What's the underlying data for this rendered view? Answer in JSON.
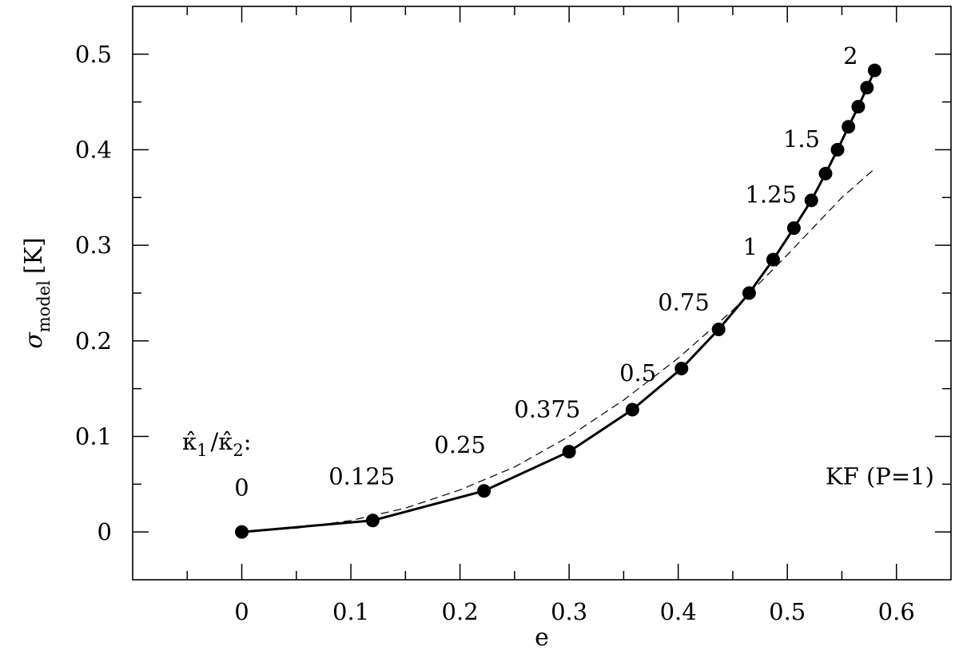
{
  "chart_data": {
    "type": "line",
    "xlabel": "e",
    "ylabel": {
      "symbol": "σ",
      "subscript": "model",
      "unit": "[K]"
    },
    "xlim": [
      -0.1,
      0.65
    ],
    "ylim": [
      -0.05,
      0.55
    ],
    "x_ticks": [
      "0",
      "0.1",
      "0.2",
      "0.3",
      "0.4",
      "0.5",
      "0.6"
    ],
    "y_ticks": [
      "0",
      "0.1",
      "0.2",
      "0.3",
      "0.4",
      "0.5"
    ],
    "series": [
      {
        "style": "solid-with-markers",
        "points": [
          {
            "x": 0.0,
            "y": 0.0
          },
          {
            "x": 0.12,
            "y": 0.012
          },
          {
            "x": 0.222,
            "y": 0.043
          },
          {
            "x": 0.3,
            "y": 0.084
          },
          {
            "x": 0.358,
            "y": 0.128
          },
          {
            "x": 0.403,
            "y": 0.171
          },
          {
            "x": 0.437,
            "y": 0.212
          },
          {
            "x": 0.465,
            "y": 0.25
          },
          {
            "x": 0.487,
            "y": 0.285
          },
          {
            "x": 0.506,
            "y": 0.318
          },
          {
            "x": 0.522,
            "y": 0.347
          },
          {
            "x": 0.535,
            "y": 0.375
          },
          {
            "x": 0.546,
            "y": 0.4
          },
          {
            "x": 0.556,
            "y": 0.424
          },
          {
            "x": 0.565,
            "y": 0.445
          },
          {
            "x": 0.573,
            "y": 0.465
          },
          {
            "x": 0.58,
            "y": 0.483
          }
        ]
      },
      {
        "style": "dashed",
        "points": [
          {
            "x": 0.0,
            "y": 0.0
          },
          {
            "x": 0.05,
            "y": 0.004
          },
          {
            "x": 0.1,
            "y": 0.012
          },
          {
            "x": 0.15,
            "y": 0.025
          },
          {
            "x": 0.2,
            "y": 0.044
          },
          {
            "x": 0.25,
            "y": 0.068
          },
          {
            "x": 0.3,
            "y": 0.1
          },
          {
            "x": 0.35,
            "y": 0.138
          },
          {
            "x": 0.4,
            "y": 0.182
          },
          {
            "x": 0.45,
            "y": 0.232
          },
          {
            "x": 0.5,
            "y": 0.29
          },
          {
            "x": 0.55,
            "y": 0.35
          },
          {
            "x": 0.58,
            "y": 0.38
          }
        ]
      }
    ],
    "legend_header": {
      "parts": [
        {
          "base": "κ̂",
          "sub": "1"
        },
        {
          "sep": "/"
        },
        {
          "base": "κ̂",
          "sub": "2"
        },
        {
          "sep": ":"
        }
      ]
    },
    "point_labels": [
      {
        "text": "0",
        "x": 0.0,
        "y": 0.038
      },
      {
        "text": "0.125",
        "x": 0.11,
        "y": 0.05
      },
      {
        "text": "0.25",
        "x": 0.2,
        "y": 0.083
      },
      {
        "text": "0.375",
        "x": 0.28,
        "y": 0.12
      },
      {
        "text": "0.5",
        "x": 0.363,
        "y": 0.158
      },
      {
        "text": "0.75",
        "x": 0.405,
        "y": 0.232
      },
      {
        "text": "1",
        "x": 0.466,
        "y": 0.29
      },
      {
        "text": "1.25",
        "x": 0.485,
        "y": 0.345
      },
      {
        "text": "1.5",
        "x": 0.513,
        "y": 0.403
      },
      {
        "text": "2",
        "x": 0.558,
        "y": 0.49
      }
    ],
    "annotation": {
      "text": "KF (P=1)",
      "x": 0.535,
      "y": 0.05
    },
    "grid": false,
    "legend": "none"
  }
}
